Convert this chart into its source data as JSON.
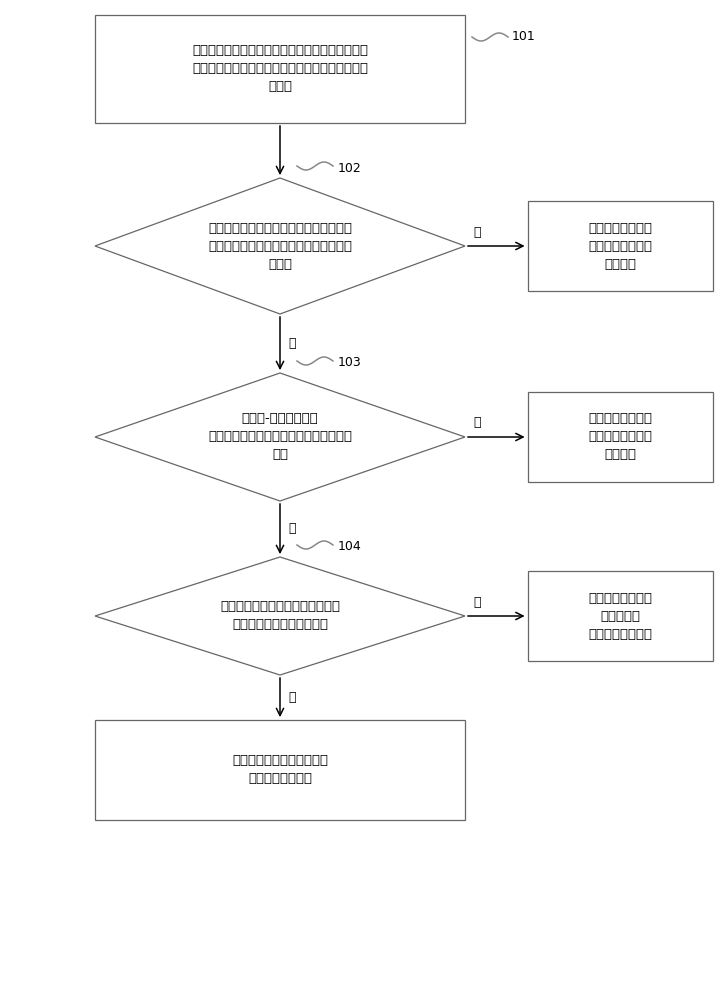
{
  "bg_color": "#ffffff",
  "text_color": "#000000",
  "box_edge_color": "#666666",
  "arrow_color": "#000000",
  "font_size": 9.5,
  "nodes": {
    "box1_text": "獲取待測配電變壓器的外特性參數，所述外特性參\n數是與所述待測配電變壓器的繞組材質相關的電性\n能參數",
    "box1_label": "101",
    "d2_text": "根據所述外特性參數，利用反演計算檢測\n法檢測所述待測配電變壓器的繞組材質是\n否為銅",
    "d2_label": "102",
    "box2r_text": "判定所述待測配電\n變壓器為合格的配\n電變壓器",
    "d3_text": "採用熱-電耦合測試法\n檢測所述待測配電變壓器的繞組材質是否\n為銅",
    "d3_label": "103",
    "box3r_text": "判定所述待測配電\n變壓器為合格的配\n電變壓器",
    "d4_text": "採用解體檢測法檢測所述待測配電\n變壓器的繞組材質是否為銅",
    "d4_label": "104",
    "box4r_text": "判定所述待測配電\n變壓器為不\n合格的配電變壓器",
    "box5_text": "判定所述待測配電變壓器為\n合格的配電變壓器",
    "yes_label": "是",
    "no_label": "否"
  }
}
